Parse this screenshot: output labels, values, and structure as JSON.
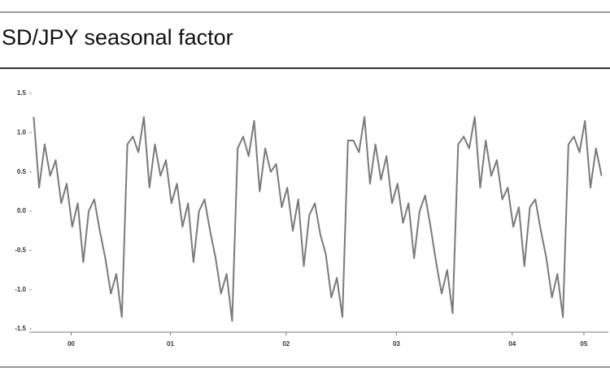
{
  "chart_data": {
    "type": "line",
    "title": "SD/JPY seasonal factor",
    "x": [
      -0.34,
      -0.29,
      -0.24,
      -0.19,
      -0.14,
      -0.09,
      -0.04,
      0.01,
      0.06,
      0.11,
      0.16,
      0.21,
      0.26,
      0.31,
      0.36,
      0.41,
      0.46,
      0.51,
      0.56,
      0.61,
      0.66,
      0.71,
      0.76,
      0.81,
      0.86,
      0.91,
      0.96,
      1.01,
      1.06,
      1.11,
      1.16,
      1.21,
      1.26,
      1.31,
      1.36,
      1.41,
      1.46,
      1.51,
      1.56,
      1.61,
      1.66,
      1.71,
      1.76,
      1.81,
      1.86,
      1.91,
      1.96,
      2.01,
      2.06,
      2.11,
      2.16,
      2.21,
      2.26,
      2.31,
      2.36,
      2.41,
      2.46,
      2.51,
      2.56,
      2.61,
      2.66,
      2.71,
      2.76,
      2.81,
      2.86,
      2.91,
      2.96,
      3.01,
      3.06,
      3.11,
      3.16,
      3.21,
      3.26,
      3.31,
      3.36,
      3.41,
      3.46,
      3.51,
      3.56,
      3.61,
      3.66,
      3.71,
      3.76,
      3.81,
      3.86,
      3.91,
      3.96,
      4.01,
      4.06,
      4.11,
      4.16,
      4.21,
      4.26,
      4.31,
      4.36,
      4.41,
      4.46,
      4.51,
      4.56,
      4.61,
      4.66,
      4.71,
      4.76,
      4.81
    ],
    "series": [
      {
        "color": "#7a7a7a",
        "values": [
          1.2,
          0.3,
          0.85,
          0.45,
          0.65,
          0.1,
          0.35,
          -0.2,
          0.1,
          -0.65,
          0.0,
          0.15,
          -0.25,
          -0.6,
          -1.05,
          -0.8,
          -1.35,
          0.85,
          0.95,
          0.75,
          1.2,
          0.3,
          0.85,
          0.45,
          0.65,
          0.1,
          0.35,
          -0.2,
          0.1,
          -0.65,
          0.0,
          0.15,
          -0.25,
          -0.6,
          -1.05,
          -0.8,
          -1.4,
          0.8,
          0.95,
          0.7,
          1.15,
          0.25,
          0.8,
          0.5,
          0.6,
          0.05,
          0.3,
          -0.25,
          0.15,
          -0.7,
          -0.05,
          0.1,
          -0.3,
          -0.55,
          -1.1,
          -0.85,
          -1.35,
          0.9,
          0.9,
          0.75,
          1.2,
          0.35,
          0.85,
          0.4,
          0.7,
          0.1,
          0.35,
          -0.15,
          0.1,
          -0.6,
          0.0,
          0.2,
          -0.2,
          -0.65,
          -1.05,
          -0.75,
          -1.3,
          0.85,
          0.95,
          0.8,
          1.2,
          0.3,
          0.9,
          0.45,
          0.65,
          0.15,
          0.3,
          -0.2,
          0.05,
          -0.7,
          0.05,
          0.15,
          -0.25,
          -0.6,
          -1.1,
          -0.8,
          -1.35,
          0.85,
          0.95,
          0.75,
          1.15,
          0.3,
          0.8,
          0.45
        ]
      }
    ],
    "xlim": [
      -0.35,
      4.85
    ],
    "xticks": [
      {
        "value": 0,
        "label": "00"
      },
      {
        "value": 0.9,
        "label": "01"
      },
      {
        "value": 1.95,
        "label": "02"
      },
      {
        "value": 2.95,
        "label": "03"
      },
      {
        "value": 4,
        "label": "04"
      },
      {
        "value": 4.65,
        "label": "05"
      }
    ],
    "ylim": [
      -1.5,
      1.5
    ],
    "yticks": [
      1.5,
      {
        "value": 1,
        "label": "1.0"
      },
      0.5,
      {
        "value": 0,
        "label": "0.0"
      },
      -0.5,
      {
        "value": -1,
        "label": "-1.0"
      },
      -1.5
    ]
  }
}
